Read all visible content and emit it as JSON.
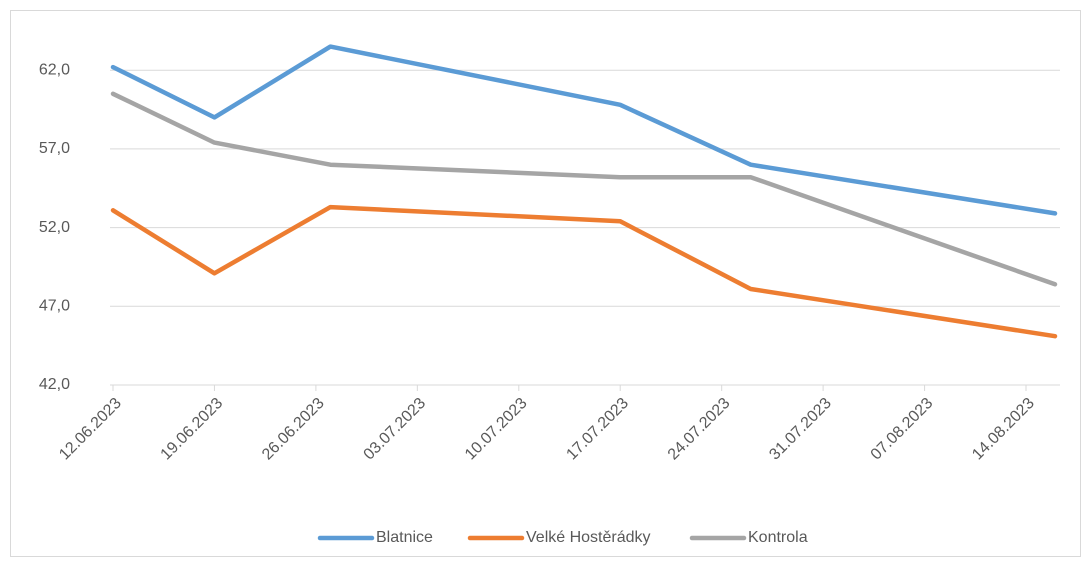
{
  "chart_data": {
    "type": "line",
    "x": [
      "12.06.2023",
      "19.06.2023",
      "27.06.2023",
      "17.07.2023",
      "26.07.2023",
      "16.08.2023"
    ],
    "xlim": [
      "12.06.2023",
      "16.08.2023"
    ],
    "xticks": [
      "12.06.2023",
      "19.06.2023",
      "26.06.2023",
      "03.07.2023",
      "10.07.2023",
      "17.07.2023",
      "24.07.2023",
      "31.07.2023",
      "07.08.2023",
      "14.08.2023"
    ],
    "ylim": [
      42,
      65
    ],
    "yticks": [
      {
        "value": 42,
        "label": "42,0"
      },
      {
        "value": 47,
        "label": "47,0"
      },
      {
        "value": 52,
        "label": "52,0"
      },
      {
        "value": 57,
        "label": "57,0"
      },
      {
        "value": 62,
        "label": "62,0"
      }
    ],
    "grid": true,
    "legend": "bottom",
    "series": [
      {
        "name": "Blatnice",
        "color": "#5b9bd5",
        "values": [
          62.2,
          59.0,
          63.5,
          59.8,
          56.0,
          52.9
        ]
      },
      {
        "name": "Velké Hostěrádky",
        "color": "#ed7d31",
        "values": [
          53.1,
          49.1,
          53.3,
          52.4,
          48.1,
          45.1
        ]
      },
      {
        "name": "Kontrola",
        "color": "#a5a5a5",
        "values": [
          60.5,
          57.4,
          56.0,
          55.2,
          55.2,
          48.4
        ]
      }
    ]
  }
}
